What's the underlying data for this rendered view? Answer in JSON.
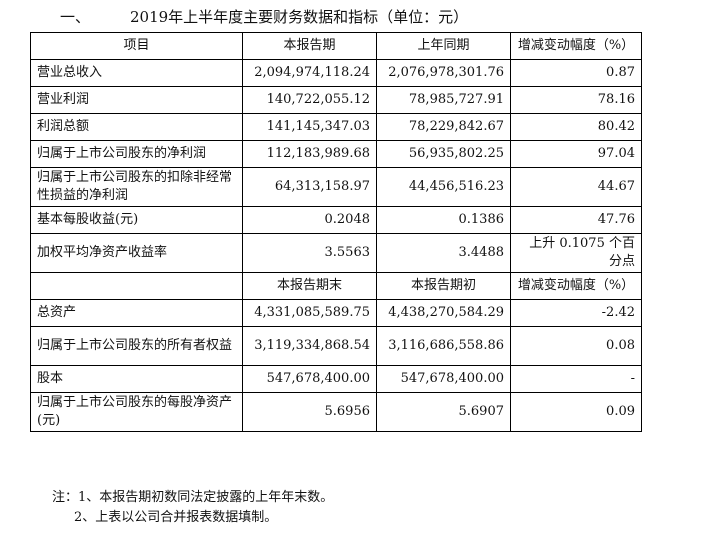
{
  "heading": {
    "number": "一、",
    "title": "2019年上半年度主要财务数据和指标（单位：元）"
  },
  "table1": {
    "headers": [
      "项目",
      "本报告期",
      "上年同期",
      "增减变动幅度（%）"
    ],
    "rows": [
      [
        "营业总收入",
        "2,094,974,118.24",
        "2,076,978,301.76",
        "0.87"
      ],
      [
        "营业利润",
        "140,722,055.12",
        "78,985,727.91",
        "78.16"
      ],
      [
        "利润总额",
        "141,145,347.03",
        "78,229,842.67",
        "80.42"
      ],
      [
        "归属于上市公司股东的净利润",
        "112,183,989.68",
        "56,935,802.25",
        "97.04"
      ],
      [
        "归属于上市公司股东的扣除非经常性损益的净利润",
        "64,313,158.97",
        "44,456,516.23",
        "44.67"
      ],
      [
        "基本每股收益(元)",
        "0.2048",
        "0.1386",
        "47.76"
      ],
      [
        "加权平均净资产收益率",
        "3.5563",
        "3.4488",
        "上升 0.1075 个百分点"
      ]
    ]
  },
  "table2": {
    "headers": [
      "",
      "本报告期末",
      "本报告期初",
      "增减变动幅度（%）"
    ],
    "rows": [
      [
        "总资产",
        "4,331,085,589.75",
        "4,438,270,584.29",
        "-2.42"
      ],
      [
        "归属于上市公司股东的所有者权益",
        "3,119,334,868.54",
        "3,116,686,558.86",
        "0.08"
      ],
      [
        "股本",
        "547,678,400.00",
        "547,678,400.00",
        "-"
      ],
      [
        "归属于上市公司股东的每股净资产(元)",
        "5.6956",
        "5.6907",
        "0.09"
      ]
    ]
  },
  "notes": [
    "注：1、本报告期初数同法定披露的上年年末数。",
    "2、上表以公司合并报表数据填制。"
  ]
}
